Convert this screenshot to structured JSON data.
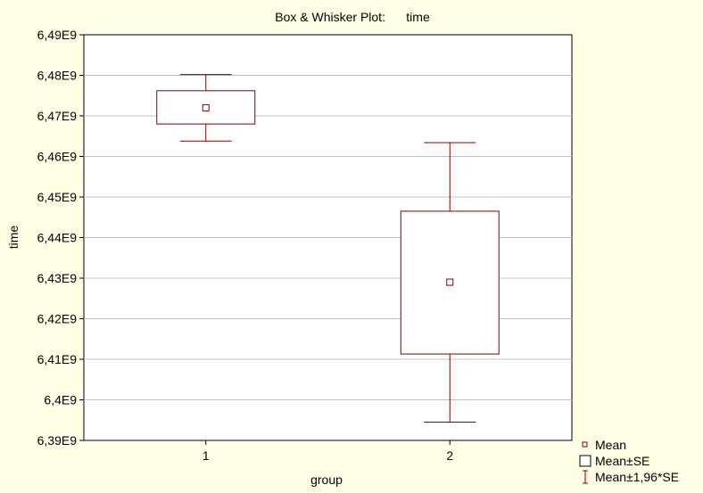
{
  "chart_data": {
    "type": "box",
    "title": "Box & Whisker Plot:      time",
    "xlabel": "group",
    "ylabel": "time",
    "ylim": [
      6390000000,
      6490000000
    ],
    "yticks": [
      {
        "value": 6390000000,
        "label": "6,39E9"
      },
      {
        "value": 6400000000,
        "label": "6,4E9"
      },
      {
        "value": 6410000000,
        "label": "6,41E9"
      },
      {
        "value": 6420000000,
        "label": "6,42E9"
      },
      {
        "value": 6430000000,
        "label": "6,43E9"
      },
      {
        "value": 6440000000,
        "label": "6,44E9"
      },
      {
        "value": 6450000000,
        "label": "6,45E9"
      },
      {
        "value": 6460000000,
        "label": "6,46E9"
      },
      {
        "value": 6470000000,
        "label": "6,47E9"
      },
      {
        "value": 6480000000,
        "label": "6,48E9"
      },
      {
        "value": 6490000000,
        "label": "6,49E9"
      }
    ],
    "categories": [
      "1",
      "2"
    ],
    "groups": [
      {
        "category": "1",
        "mean": 6472000000,
        "se_low": 6468000000,
        "se_high": 6476200000,
        "ci_low": 6463800000,
        "ci_high": 6480200000
      },
      {
        "category": "2",
        "mean": 6429000000,
        "se_low": 6411300000,
        "se_high": 6446500000,
        "ci_low": 6394500000,
        "ci_high": 6463400000
      }
    ],
    "grid": true,
    "legend_position": "bottom-right",
    "legend": [
      "Mean",
      "Mean±SE",
      "Mean±1,96*SE"
    ],
    "colors": {
      "series": "#800000",
      "background": "#ffffe5",
      "plot_area": "#ffffff",
      "grid": "#c0c0c0",
      "axis": "#000000"
    }
  }
}
